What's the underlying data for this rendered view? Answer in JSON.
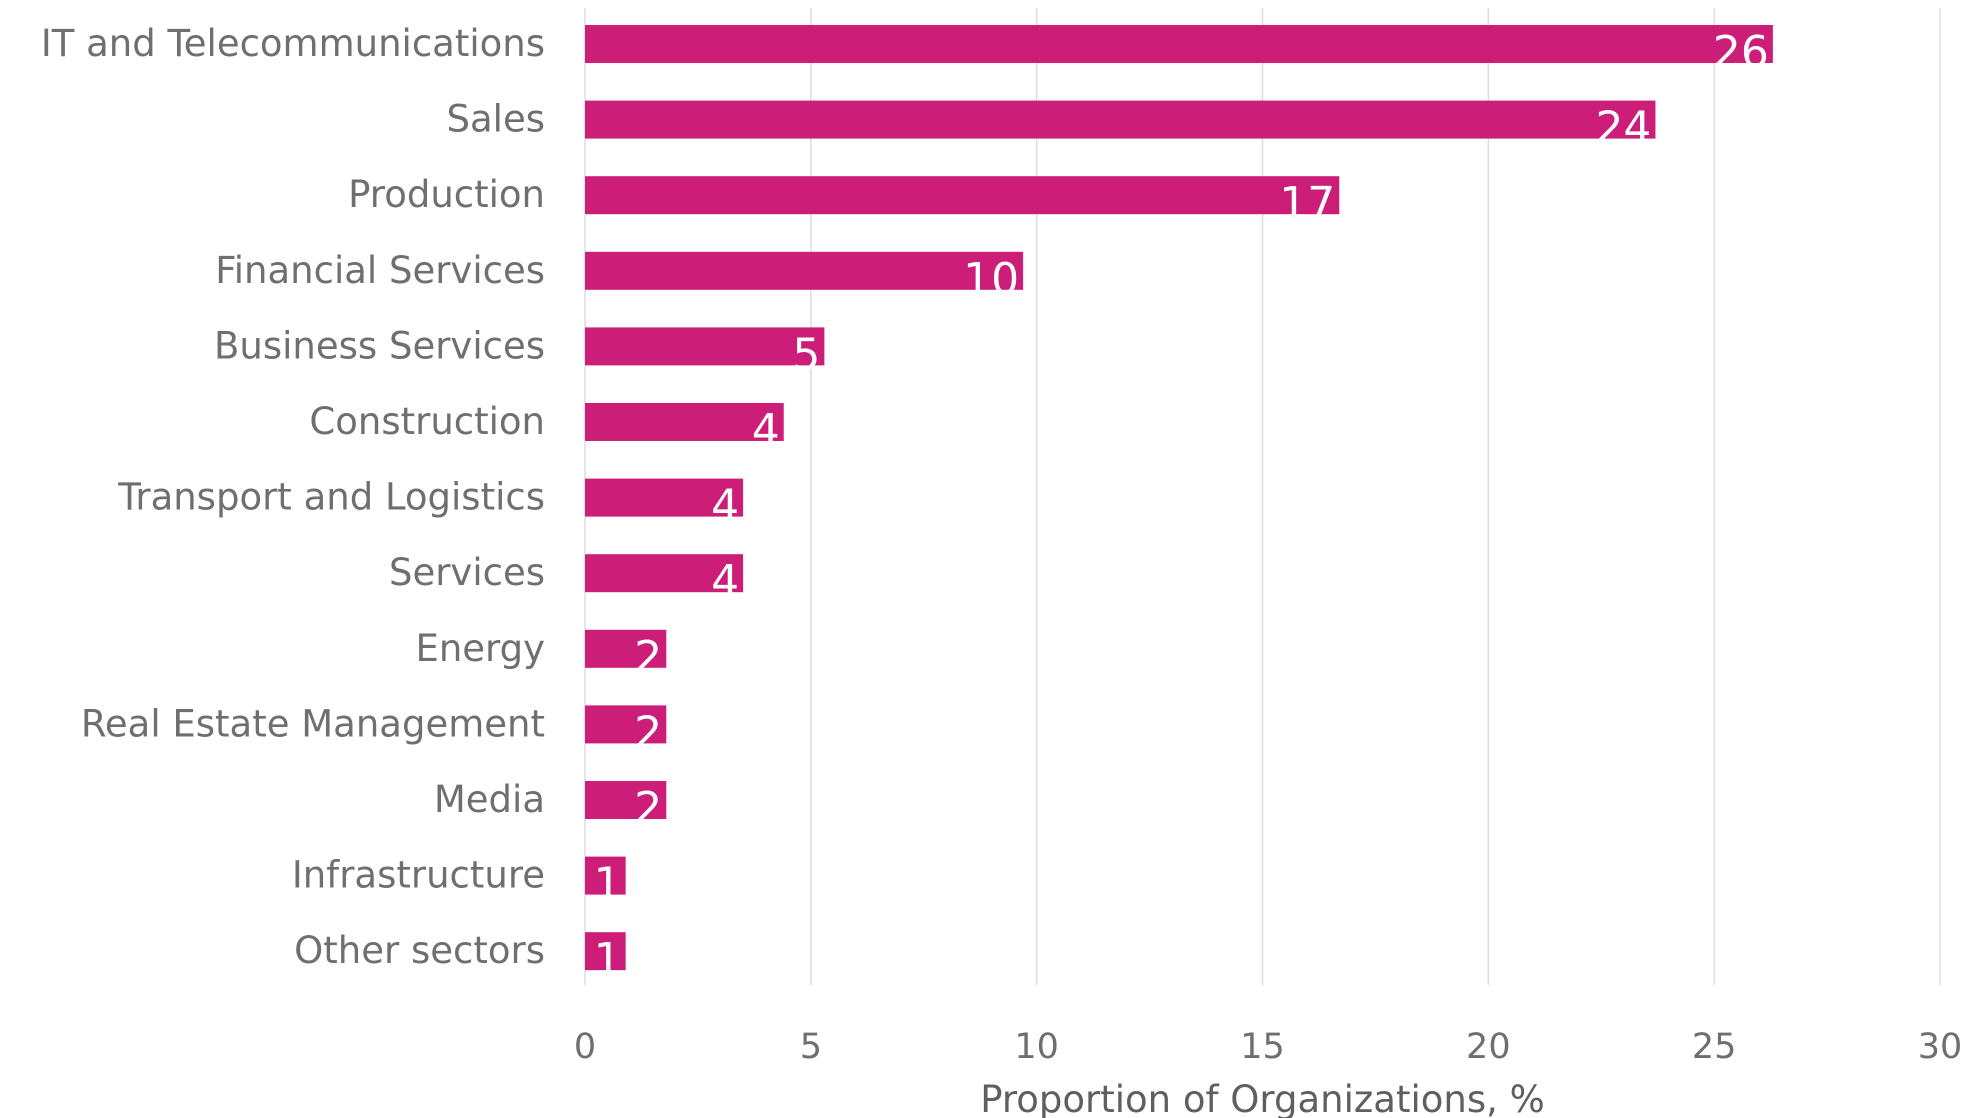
{
  "chart_data": {
    "type": "bar",
    "orientation": "horizontal",
    "categories": [
      "IT and Telecommunications",
      "Sales",
      "Production",
      "Financial Services",
      "Business Services",
      "Construction",
      "Transport and Logistics",
      "Services",
      "Energy",
      "Real Estate Management",
      "Media",
      "Infrastructure",
      "Other sectors"
    ],
    "values": [
      26.3,
      23.7,
      16.7,
      9.7,
      5.3,
      4.4,
      3.5,
      3.5,
      1.8,
      1.8,
      1.8,
      0.9,
      0.9
    ],
    "data_labels": [
      "26",
      "24",
      "17",
      "10",
      "5",
      "4",
      "4",
      "4",
      "2",
      "2",
      "2",
      "1",
      "1"
    ],
    "title": "",
    "xlabel": "Proportion of Organizations, %",
    "ylabel": "",
    "xlim": [
      0,
      30
    ],
    "xticks": [
      0,
      5,
      10,
      15,
      20,
      25,
      30
    ],
    "xtick_labels": [
      "0",
      "5",
      "10",
      "15",
      "20",
      "25",
      "30"
    ],
    "grid": "vertical",
    "legend": "none",
    "colors": {
      "bar": "#cc1e78",
      "label_text": "#6f6f6f",
      "grid": "#dedede",
      "data_label": "#ffffff"
    }
  }
}
